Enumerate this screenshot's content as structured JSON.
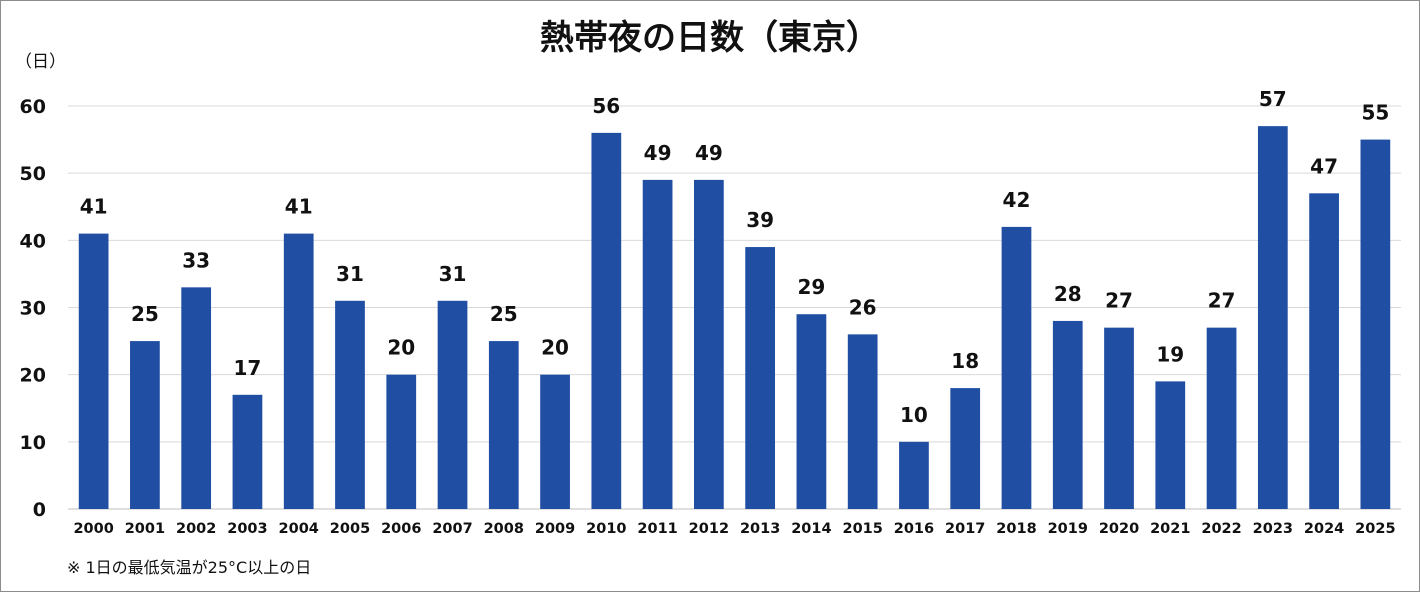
{
  "chart_data": {
    "type": "bar",
    "title": "熱帯夜の日数（東京）",
    "ylabel": "（日）",
    "xlabel": "",
    "categories": [
      "2000",
      "2001",
      "2002",
      "2003",
      "2004",
      "2005",
      "2006",
      "2007",
      "2008",
      "2009",
      "2010",
      "2011",
      "2012",
      "2013",
      "2014",
      "2015",
      "2016",
      "2017",
      "2018",
      "2019",
      "2020",
      "2021",
      "2022",
      "2023",
      "2024",
      "2025"
    ],
    "values": [
      41,
      25,
      33,
      17,
      41,
      31,
      20,
      31,
      25,
      20,
      56,
      49,
      49,
      39,
      29,
      26,
      10,
      18,
      42,
      28,
      27,
      19,
      27,
      57,
      47,
      55
    ],
    "ylim": [
      0,
      60
    ],
    "yticks": [
      0,
      10,
      20,
      30,
      40,
      50,
      60
    ],
    "grid": true,
    "bar_color": "#1f4ea3",
    "note": "※ 1日の最低気温が25°C以上の日"
  }
}
